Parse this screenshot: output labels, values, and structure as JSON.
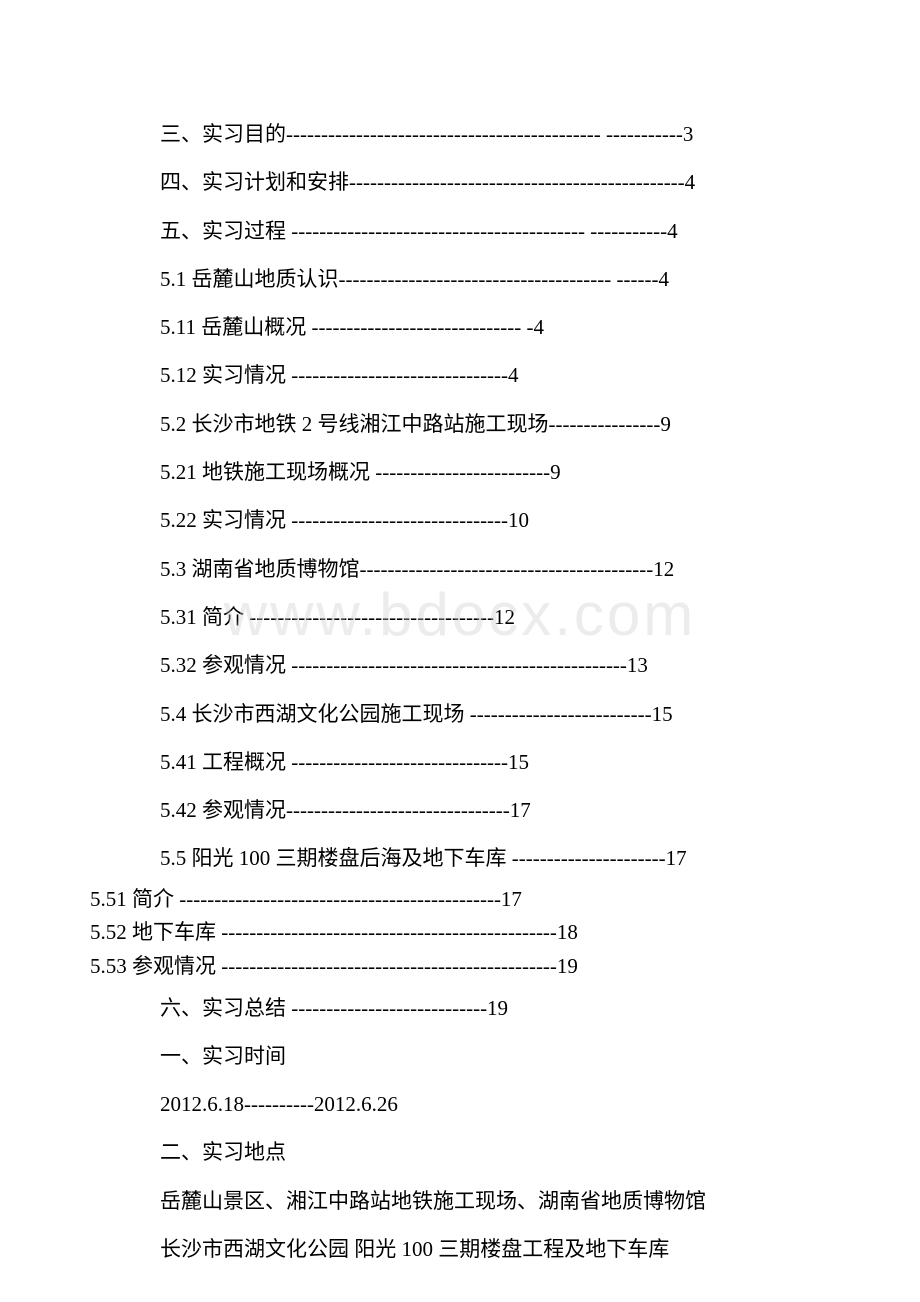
{
  "background_color": "#ffffff",
  "text_color": "#000000",
  "font_family": "SimSun",
  "base_fontsize": 21,
  "watermark_text": "www.bdocx.com",
  "watermark_color": "rgba(200,200,200,0.35)",
  "toc": {
    "l01": "三、实习目的--------------------------------------------- -----------3",
    "l02": "四、实习计划和安排------------------------------------------------4",
    "l03": "五、实习过程 ------------------------------------------ -----------4",
    "l04": "5.1 岳麓山地质认识--------------------------------------- ------4",
    "l05": "5.11 岳麓山概况 ------------------------------ -4",
    "l06": "5.12 实习情况 -------------------------------4",
    "l07": "5.2 长沙市地铁 2 号线湘江中路站施工现场----------------9",
    "l08": "5.21 地铁施工现场概况 -------------------------9",
    "l09": "5.22 实习情况 -------------------------------10",
    "l10": "5.3 湖南省地质博物馆------------------------------------------12",
    "l11": "5.31 简介 -----------------------------------12",
    "l12": "5.32 参观情况 ------------------------------------------------13",
    "l13": "5.4 长沙市西湖文化公园施工现场 --------------------------15",
    "l14": "5.41 工程概况 -------------------------------15",
    "l15": "5.42 参观情况--------------------------------17",
    "l16": "5.5 阳光 100 三期楼盘后海及地下车库 ----------------------17",
    "l17": "5.51 简介 ----------------------------------------------17",
    "l18": "5.52 地下车库 ------------------------------------------------18",
    "l19": "5.53 参观情况 ------------------------------------------------19",
    "l20": "六、实习总结  ----------------------------19"
  },
  "body": {
    "b1": "一、实习时间",
    "b2": "2012.6.18----------2012.6.26",
    "b3": "二、实习地点",
    "b4": "岳麓山景区、湘江中路站地铁施工现场、湖南省地质博物馆",
    "b5": "长沙市西湖文化公园 阳光 100 三期楼盘工程及地下车库"
  }
}
